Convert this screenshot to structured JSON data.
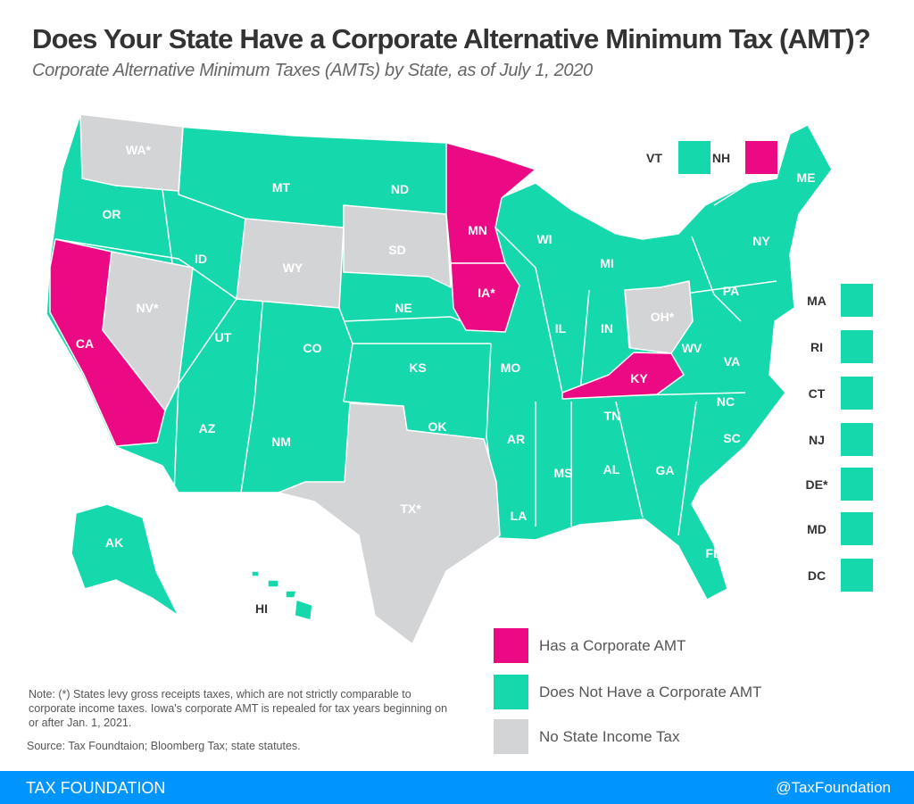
{
  "title": "Does Your State Have a Corporate Alternative Minimum Tax (AMT)?",
  "subtitle": "Corporate Alternative Minimum Taxes (AMTs) by State, as of July 1, 2020",
  "colors": {
    "has_amt": "#ec0a84",
    "no_amt": "#15d8ad",
    "no_income_tax": "#d3d4d6",
    "footer": "#0094ff"
  },
  "legend": [
    {
      "label": "Has a Corporate AMT",
      "category": "has_amt"
    },
    {
      "label": "Does Not Have a Corporate AMT",
      "category": "no_amt"
    },
    {
      "label": "No State Income Tax",
      "category": "no_income_tax"
    }
  ],
  "states": [
    {
      "label": "WA*",
      "category": "no_income_tax"
    },
    {
      "label": "OR",
      "category": "no_amt"
    },
    {
      "label": "CA",
      "category": "has_amt"
    },
    {
      "label": "NV*",
      "category": "no_income_tax"
    },
    {
      "label": "ID",
      "category": "no_amt"
    },
    {
      "label": "MT",
      "category": "no_amt"
    },
    {
      "label": "WY",
      "category": "no_income_tax"
    },
    {
      "label": "UT",
      "category": "no_amt"
    },
    {
      "label": "AZ",
      "category": "no_amt"
    },
    {
      "label": "CO",
      "category": "no_amt"
    },
    {
      "label": "NM",
      "category": "no_amt"
    },
    {
      "label": "ND",
      "category": "no_amt"
    },
    {
      "label": "SD",
      "category": "no_income_tax"
    },
    {
      "label": "NE",
      "category": "no_amt"
    },
    {
      "label": "KS",
      "category": "no_amt"
    },
    {
      "label": "OK",
      "category": "no_amt"
    },
    {
      "label": "TX*",
      "category": "no_income_tax"
    },
    {
      "label": "MN",
      "category": "has_amt"
    },
    {
      "label": "IA*",
      "category": "has_amt"
    },
    {
      "label": "MO",
      "category": "no_amt"
    },
    {
      "label": "AR",
      "category": "no_amt"
    },
    {
      "label": "LA",
      "category": "no_amt"
    },
    {
      "label": "WI",
      "category": "no_amt"
    },
    {
      "label": "IL",
      "category": "no_amt"
    },
    {
      "label": "MI",
      "category": "no_amt"
    },
    {
      "label": "IN",
      "category": "no_amt"
    },
    {
      "label": "OH*",
      "category": "no_income_tax"
    },
    {
      "label": "KY",
      "category": "has_amt"
    },
    {
      "label": "TN",
      "category": "no_amt"
    },
    {
      "label": "MS",
      "category": "no_amt"
    },
    {
      "label": "AL",
      "category": "no_amt"
    },
    {
      "label": "GA",
      "category": "no_amt"
    },
    {
      "label": "FL",
      "category": "no_amt"
    },
    {
      "label": "SC",
      "category": "no_amt"
    },
    {
      "label": "NC",
      "category": "no_amt"
    },
    {
      "label": "VA",
      "category": "no_amt"
    },
    {
      "label": "WV",
      "category": "no_amt"
    },
    {
      "label": "PA",
      "category": "no_amt"
    },
    {
      "label": "NY",
      "category": "no_amt"
    },
    {
      "label": "ME",
      "category": "no_amt"
    },
    {
      "label": "AK",
      "category": "no_amt"
    },
    {
      "label": "HI",
      "category": "no_amt"
    }
  ],
  "small_states": [
    {
      "label": "VT",
      "category": "no_amt"
    },
    {
      "label": "NH",
      "category": "has_amt"
    },
    {
      "label": "MA",
      "category": "no_amt"
    },
    {
      "label": "RI",
      "category": "no_amt"
    },
    {
      "label": "CT",
      "category": "no_amt"
    },
    {
      "label": "NJ",
      "category": "no_amt"
    },
    {
      "label": "DE*",
      "category": "no_amt"
    },
    {
      "label": "MD",
      "category": "no_amt"
    },
    {
      "label": "DC",
      "category": "no_amt"
    }
  ],
  "note": "Note: (*) States levy gross receipts taxes, which are not strictly comparable to corporate income taxes. Iowa's corporate AMT is repealed for tax years beginning on or after Jan. 1, 2021.",
  "source": "Source: Tax Foundtaion; Bloomberg Tax; state statutes.",
  "footer": {
    "brand": "TAX FOUNDATION",
    "handle": "@TaxFoundation"
  }
}
